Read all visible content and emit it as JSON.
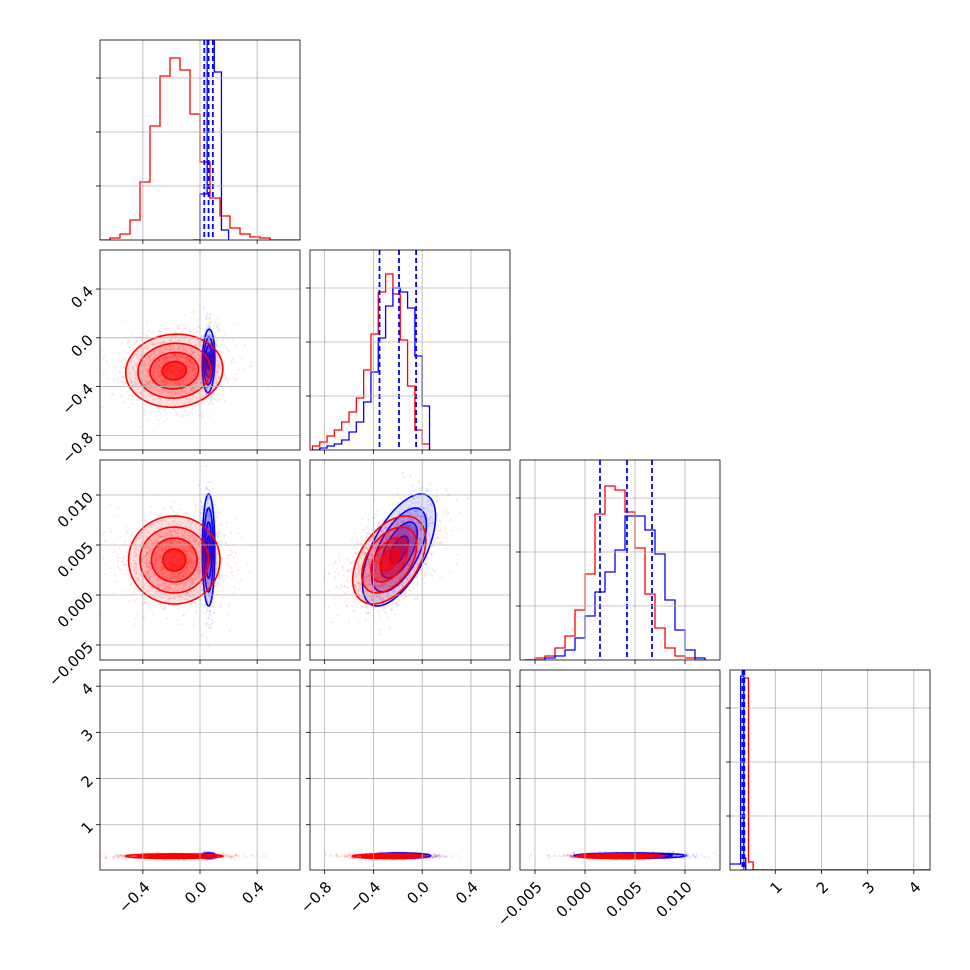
{
  "chart_data": {
    "type": "corner",
    "series_colors": {
      "red": "#ff0000",
      "blue": "#0000ff"
    },
    "grid": true,
    "parameters": [
      {
        "range": [
          -0.7,
          0.7
        ],
        "ticks": [
          -0.4,
          0.0,
          0.4
        ],
        "tick_labels": [
          "−0.4",
          "0.0",
          "0.4"
        ]
      },
      {
        "range": [
          -0.92,
          0.72
        ],
        "ticks": [
          -0.8,
          -0.4,
          0.0,
          0.4
        ],
        "tick_labels": [
          "−0.8",
          "−0.4",
          "0.0",
          "0.4"
        ]
      },
      {
        "range": [
          -0.0065,
          0.0135
        ],
        "ticks": [
          -0.005,
          0.0,
          0.005,
          0.01
        ],
        "tick_labels": [
          "−0.005",
          "0.000",
          "0.005",
          "0.010"
        ]
      },
      {
        "range": [
          0.02,
          4.35
        ],
        "ticks": [
          1,
          2,
          3,
          4
        ],
        "tick_labels": [
          "1",
          "2",
          "3",
          "4"
        ]
      }
    ],
    "histograms": [
      {
        "param": 0,
        "ymax": 1.0,
        "red_bins": [
          -0.7,
          -0.63,
          -0.56,
          -0.49,
          -0.42,
          -0.35,
          -0.28,
          -0.21,
          -0.14,
          -0.07,
          0.0,
          0.07,
          0.14,
          0.21,
          0.28,
          0.35,
          0.42,
          0.49,
          0.56,
          0.63,
          0.7
        ],
        "red_counts": [
          0.0,
          0.01,
          0.03,
          0.1,
          0.29,
          0.57,
          0.82,
          0.91,
          0.85,
          0.63,
          0.39,
          0.21,
          0.12,
          0.06,
          0.03,
          0.015,
          0.01,
          0.0,
          0.0,
          0.0
        ],
        "blue_bins": [
          -0.05,
          0.0,
          0.05,
          0.1,
          0.15,
          0.2
        ],
        "blue_counts": [
          0.0,
          0.23,
          1.05,
          0.84,
          0.05
        ],
        "blue_quantiles": [
          0.03,
          0.06,
          0.09
        ]
      },
      {
        "param": 1,
        "ymax": 1.0,
        "red_bins": [
          -0.9,
          -0.84,
          -0.78,
          -0.72,
          -0.66,
          -0.6,
          -0.54,
          -0.48,
          -0.42,
          -0.36,
          -0.3,
          -0.24,
          -0.18,
          -0.12,
          -0.06,
          0.0,
          0.06
        ],
        "red_counts": [
          0.02,
          0.04,
          0.07,
          0.1,
          0.14,
          0.19,
          0.26,
          0.4,
          0.58,
          0.79,
          0.88,
          0.78,
          0.55,
          0.32,
          0.1,
          0.03
        ],
        "blue_bins": [
          -0.9,
          -0.84,
          -0.78,
          -0.72,
          -0.66,
          -0.6,
          -0.54,
          -0.48,
          -0.42,
          -0.36,
          -0.3,
          -0.24,
          -0.18,
          -0.12,
          -0.06,
          0.0,
          0.06
        ],
        "blue_counts": [
          0.0,
          0.01,
          0.02,
          0.03,
          0.05,
          0.09,
          0.14,
          0.24,
          0.39,
          0.56,
          0.72,
          0.81,
          0.79,
          0.71,
          0.47,
          0.22
        ],
        "blue_quantiles": [
          -0.35,
          -0.19,
          -0.05
        ]
      },
      {
        "param": 2,
        "ymax": 1.0,
        "red_bins": [
          -0.006,
          -0.005,
          -0.004,
          -0.003,
          -0.002,
          -0.001,
          0.0,
          0.001,
          0.002,
          0.003,
          0.004,
          0.005,
          0.006,
          0.007,
          0.008,
          0.009,
          0.01,
          0.011,
          0.012
        ],
        "red_counts": [
          0.0,
          0.01,
          0.02,
          0.06,
          0.12,
          0.25,
          0.43,
          0.73,
          0.87,
          0.85,
          0.74,
          0.56,
          0.33,
          0.16,
          0.06,
          0.02,
          0.01,
          0.0
        ],
        "blue_bins": [
          -0.006,
          -0.005,
          -0.004,
          -0.003,
          -0.002,
          -0.001,
          0.0,
          0.001,
          0.002,
          0.003,
          0.004,
          0.005,
          0.006,
          0.007,
          0.008,
          0.009,
          0.01,
          0.011,
          0.012
        ],
        "blue_counts": [
          0.0,
          0.0,
          0.01,
          0.02,
          0.05,
          0.11,
          0.22,
          0.34,
          0.44,
          0.55,
          0.72,
          0.72,
          0.65,
          0.53,
          0.3,
          0.15,
          0.05,
          0.01
        ],
        "blue_quantiles": [
          0.0015,
          0.0042,
          0.0067
        ]
      },
      {
        "param": 3,
        "ymax": 1.0,
        "red_bins": [
          0.25,
          0.32,
          0.42,
          0.52,
          4.35
        ],
        "red_counts": [
          0.0,
          0.96,
          0.04,
          0.0
        ],
        "blue_bins": [
          0.0,
          0.25,
          0.32,
          0.36,
          4.35
        ],
        "blue_counts": [
          0.03,
          0.97,
          0.06,
          0.0
        ],
        "blue_quantiles": [
          0.29,
          0.31,
          0.33
        ]
      }
    ],
    "scatter_panels": [
      {
        "x_param": 0,
        "y_param": 1,
        "red": {
          "mean": [
            -0.18,
            -0.27
          ],
          "sd": [
            0.17,
            0.15
          ],
          "rho": 0.05
        },
        "blue": {
          "mean": [
            0.06,
            -0.19
          ],
          "sd": [
            0.022,
            0.13
          ],
          "rho": 0.1
        }
      },
      {
        "x_param": 0,
        "y_param": 2,
        "red": {
          "mean": [
            -0.18,
            0.0035
          ],
          "sd": [
            0.16,
            0.0022
          ],
          "rho": 0.0
        },
        "blue": {
          "mean": [
            0.06,
            0.0045
          ],
          "sd": [
            0.022,
            0.0028
          ],
          "rho": 0.0
        }
      },
      {
        "x_param": 1,
        "y_param": 2,
        "red": {
          "mean": [
            -0.27,
            0.0035
          ],
          "sd": [
            0.15,
            0.0022
          ],
          "rho": 0.45
        },
        "blue": {
          "mean": [
            -0.19,
            0.0045
          ],
          "sd": [
            0.15,
            0.0028
          ],
          "rho": 0.6
        }
      },
      {
        "x_param": 0,
        "y_param": 3,
        "red": {
          "mean": [
            -0.18,
            0.32
          ],
          "sd": [
            0.17,
            0.025
          ],
          "rho": 0.0
        },
        "blue": {
          "mean": [
            0.06,
            0.33
          ],
          "sd": [
            0.025,
            0.03
          ],
          "rho": 0.0
        }
      },
      {
        "x_param": 1,
        "y_param": 3,
        "red": {
          "mean": [
            -0.27,
            0.32
          ],
          "sd": [
            0.15,
            0.025
          ],
          "rho": 0.0
        },
        "blue": {
          "mean": [
            -0.19,
            0.33
          ],
          "sd": [
            0.13,
            0.03
          ],
          "rho": 0.0
        }
      },
      {
        "x_param": 2,
        "y_param": 3,
        "red": {
          "mean": [
            0.0035,
            0.32
          ],
          "sd": [
            0.0022,
            0.025
          ],
          "rho": 0.0
        },
        "blue": {
          "mean": [
            0.0045,
            0.33
          ],
          "sd": [
            0.0028,
            0.03
          ],
          "rho": 0.0
        }
      }
    ]
  }
}
